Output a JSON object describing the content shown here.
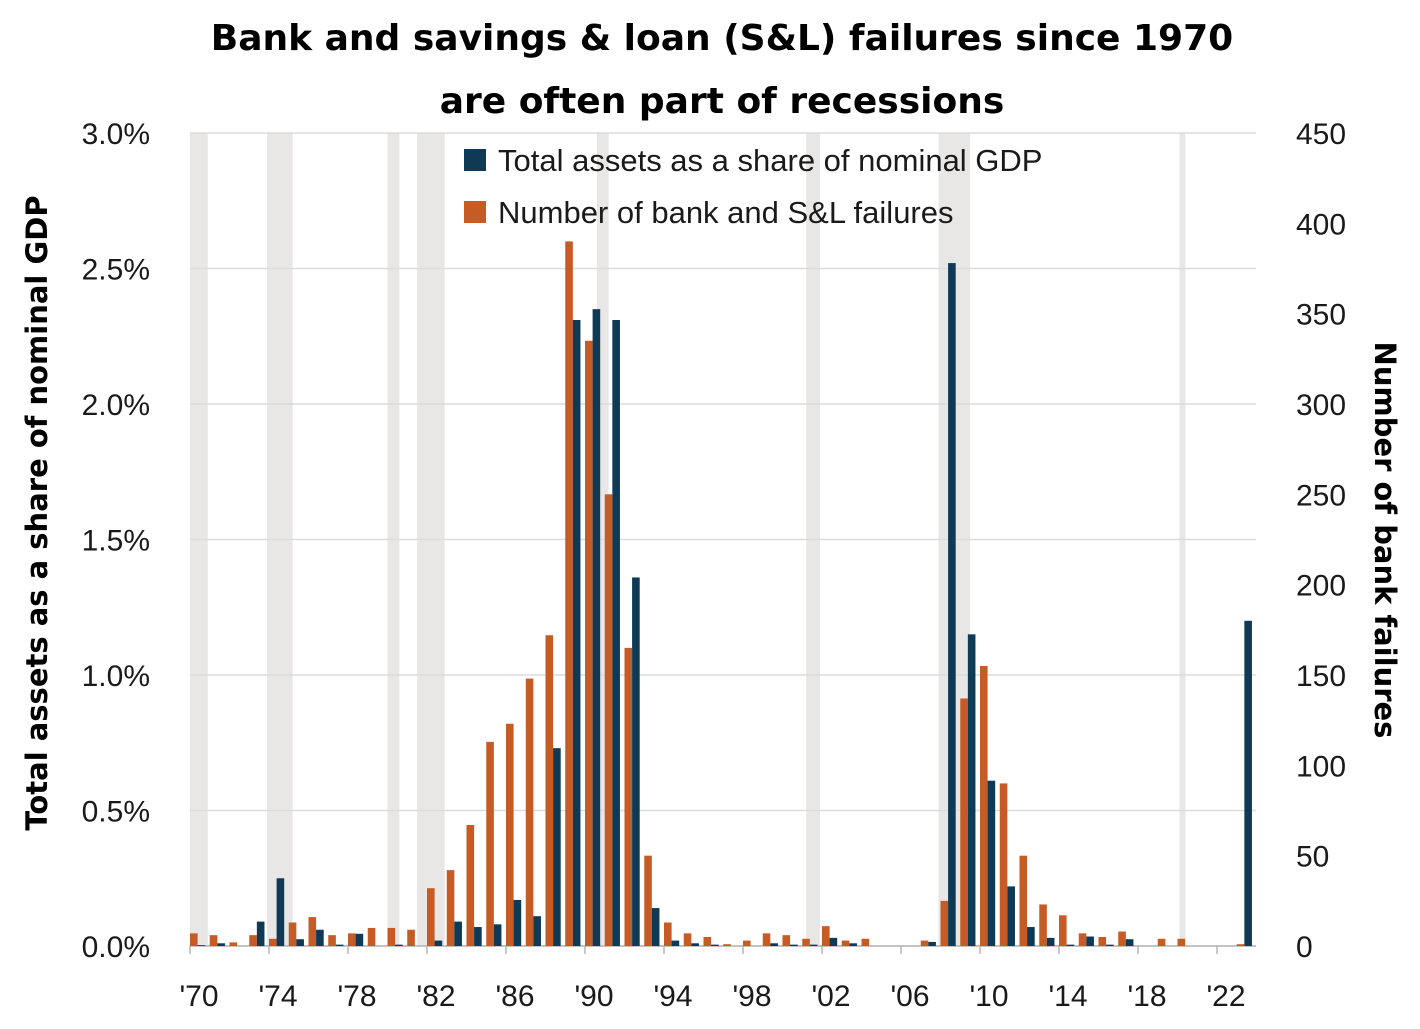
{
  "chart_data": {
    "type": "bar",
    "title_lines": [
      "Bank and savings & loan (S&L) failures since 1970",
      "are often part of recessions"
    ],
    "ylabel_left": "Total assets as a share of nominal GDP",
    "ylabel_right": "Number of bank failures",
    "left_axis": {
      "min": 0,
      "max": 3.0,
      "ticks": [
        "0.0%",
        "0.5%",
        "1.0%",
        "1.5%",
        "2.0%",
        "2.5%",
        "3.0%"
      ]
    },
    "right_axis": {
      "min": 0,
      "max": 450,
      "ticks": [
        "0",
        "50",
        "100",
        "150",
        "200",
        "250",
        "300",
        "350",
        "400",
        "450"
      ]
    },
    "x_tick_labels": [
      "'70",
      "'74",
      "'78",
      "'82",
      "'86",
      "'90",
      "'94",
      "'98",
      "'02",
      "'06",
      "'10",
      "'14",
      "'18",
      "'22"
    ],
    "x_tick_years": [
      1970,
      1974,
      1978,
      1982,
      1986,
      1990,
      1994,
      1998,
      2002,
      2006,
      2010,
      2014,
      2018,
      2022
    ],
    "years": [
      1970,
      1971,
      1972,
      1973,
      1974,
      1975,
      1976,
      1977,
      1978,
      1979,
      1980,
      1981,
      1982,
      1983,
      1984,
      1985,
      1986,
      1987,
      1988,
      1989,
      1990,
      1991,
      1992,
      1993,
      1994,
      1995,
      1996,
      1997,
      1998,
      1999,
      2000,
      2001,
      2002,
      2003,
      2004,
      2005,
      2006,
      2007,
      2008,
      2009,
      2010,
      2011,
      2012,
      2013,
      2014,
      2015,
      2016,
      2017,
      2018,
      2019,
      2020,
      2021,
      2022,
      2023
    ],
    "recessions": [
      {
        "start": 1969.9,
        "end": 1970.9
      },
      {
        "start": 1973.9,
        "end": 1975.2
      },
      {
        "start": 1980.0,
        "end": 1980.6
      },
      {
        "start": 1981.5,
        "end": 1982.9
      },
      {
        "start": 1990.6,
        "end": 1991.2
      },
      {
        "start": 2001.2,
        "end": 2001.9
      },
      {
        "start": 2007.9,
        "end": 2009.5
      },
      {
        "start": 2020.1,
        "end": 2020.4
      }
    ],
    "series": [
      {
        "name": "Total assets as a share of nominal GDP",
        "color": "#0f3a55",
        "axis": "left",
        "values": [
          0.003,
          0.01,
          0.0,
          0.09,
          0.25,
          0.025,
          0.06,
          0.005,
          0.045,
          0.0,
          0.005,
          0.0,
          0.02,
          0.09,
          0.07,
          0.08,
          0.17,
          0.11,
          0.73,
          2.31,
          2.35,
          2.31,
          1.36,
          0.14,
          0.02,
          0.01,
          0.005,
          0.0,
          0.0,
          0.01,
          0.005,
          0.005,
          0.03,
          0.01,
          0.0,
          0.0,
          0.0,
          0.015,
          2.52,
          1.15,
          0.61,
          0.22,
          0.07,
          0.03,
          0.005,
          0.035,
          0.005,
          0.025,
          0.0,
          0.0,
          0.0,
          0.0,
          0.0,
          1.2
        ]
      },
      {
        "name": "Number of bank and S&L failures",
        "color": "#c75b26",
        "axis": "right",
        "values": [
          7,
          6,
          2,
          6,
          4,
          13,
          16,
          6,
          7,
          10,
          10,
          9,
          32,
          42,
          67,
          113,
          123,
          148,
          172,
          390,
          335,
          250,
          165,
          50,
          13,
          7,
          5,
          1,
          3,
          7,
          6,
          4,
          11,
          3,
          4,
          0,
          0,
          3,
          25,
          137,
          155,
          90,
          50,
          23,
          17,
          7,
          5,
          8,
          0,
          4,
          4,
          0,
          0,
          1
        ]
      }
    ],
    "legend_position": "top-center",
    "grid": "horizontal"
  }
}
